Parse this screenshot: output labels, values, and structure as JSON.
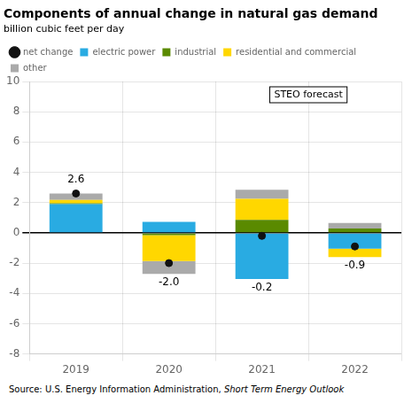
{
  "chart_data": {
    "type": "bar",
    "title": "Components of annual change in natural gas demand",
    "subtitle": "billion cubic feet per day",
    "categories": [
      "2019",
      "2020",
      "2021",
      "2022"
    ],
    "series": [
      {
        "name": "net change",
        "type": "scatter",
        "marker": "circle",
        "color": "#111111",
        "values": [
          2.6,
          -2.0,
          -0.2,
          -0.9
        ],
        "data_labels": true,
        "value_labels": [
          "2.6",
          "-2.0",
          "-0.2",
          "-0.9"
        ]
      },
      {
        "name": "electric power",
        "color": "#29ABE2",
        "values": [
          1.9,
          0.72,
          -3.05,
          -1.05
        ]
      },
      {
        "name": "industrial",
        "color": "#5A8A00",
        "values": [
          0.05,
          -0.15,
          0.85,
          0.28
        ]
      },
      {
        "name": "residential and commercial",
        "color": "#FFD700",
        "values": [
          0.22,
          -1.72,
          1.4,
          -0.55
        ]
      },
      {
        "name": "other",
        "color": "#AAAAAA",
        "values": [
          0.43,
          -0.85,
          0.6,
          0.37
        ]
      }
    ],
    "stacked": true,
    "ylim": [
      -8,
      10
    ],
    "yticks": [
      -8,
      -6,
      -4,
      -2,
      0,
      2,
      4,
      6,
      8,
      10
    ],
    "grid": true,
    "legend": "upper left",
    "annotations": [
      "STEO forecast"
    ],
    "source": "Source: U.S. Energy Information Administration, ",
    "source_italic": "Short Term Energy Outlook"
  }
}
